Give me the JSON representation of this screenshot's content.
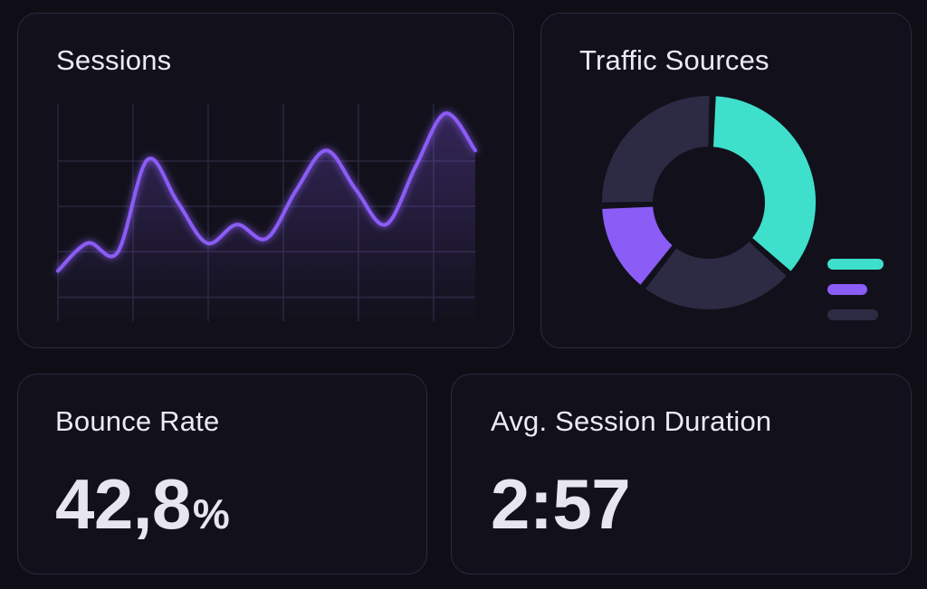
{
  "colors": {
    "background": "#0f0e16",
    "card_border": "#2b2940",
    "accent_purple": "#8b5cf6",
    "accent_teal": "#3ee0cc",
    "muted_slice": "#2d2a44"
  },
  "sessions": {
    "title": "Sessions",
    "chart_data": {
      "type": "line",
      "title": "Sessions",
      "xlabel": "",
      "ylabel": "",
      "grid": true,
      "x": [
        0,
        1,
        2,
        3,
        4,
        5,
        6,
        7,
        8,
        9,
        10,
        11,
        12,
        13,
        14
      ],
      "series": [
        {
          "values": [
            10,
            22,
            18,
            58,
            40,
            22,
            30,
            24,
            45,
            62,
            45,
            30,
            55,
            78,
            62
          ]
        }
      ],
      "ylim": [
        0,
        100
      ]
    }
  },
  "traffic": {
    "title": "Traffic Sources",
    "chart_data": {
      "type": "pie",
      "title": "Traffic Sources",
      "donut": true,
      "slices": [
        {
          "value": 36,
          "color": "#3ee0cc"
        },
        {
          "value": 24,
          "color": "#2d2a44"
        },
        {
          "value": 14,
          "color": "#8b5cf6"
        },
        {
          "value": 26,
          "color": "#2d2a44"
        }
      ],
      "legend_placement": "bottom-right",
      "legend_colors": [
        "#3ee0cc",
        "#8b5cf6",
        "#2d2a44"
      ]
    }
  },
  "bounce": {
    "title": "Bounce Rate",
    "value": "42,8",
    "unit": "%"
  },
  "duration": {
    "title": "Avg. Session Duration",
    "value": "2:57"
  }
}
